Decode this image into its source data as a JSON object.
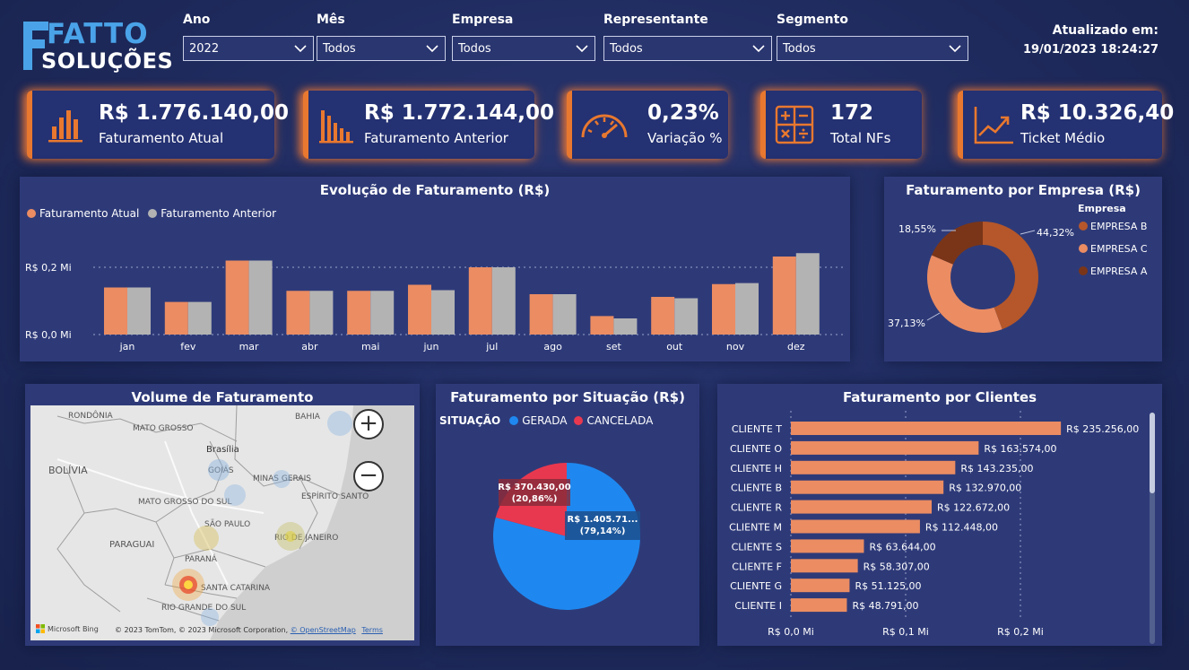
{
  "logo": {
    "brand": "FATTO",
    "sub": "SOLUÇÕES"
  },
  "filters": [
    {
      "label": "Ano",
      "value": "2022"
    },
    {
      "label": "Mês",
      "value": "Todos"
    },
    {
      "label": "Empresa",
      "value": "Todos"
    },
    {
      "label": "Representante",
      "value": "Todos"
    },
    {
      "label": "Segmento",
      "value": "Todos"
    }
  ],
  "updated": {
    "label": "Atualizado em:",
    "datetime": "19/01/2023 18:24:27"
  },
  "kpis": [
    {
      "value": "R$ 1.776.140,00",
      "label": "Faturamento Atual",
      "icon": "bar-chart-icon"
    },
    {
      "value": "R$ 1.772.144,00",
      "label": "Faturamento Anterior",
      "icon": "bar-chart-icon"
    },
    {
      "value": "0,23%",
      "label": "Variação %",
      "icon": "gauge-icon"
    },
    {
      "value": "172",
      "label": "Total NFs",
      "icon": "calculator-icon"
    },
    {
      "value": "R$ 10.326,40",
      "label": "Ticket Médio",
      "icon": "trend-up-icon"
    }
  ],
  "colors": {
    "accent": "#e8782f",
    "current": "#eb8c62",
    "previous": "#b3b3b3",
    "gerada": "#1e88f0",
    "cancelada": "#e8384f"
  },
  "evolucao": {
    "title": "Evolução de Faturamento (R$)",
    "legend": [
      "Faturamento Atual",
      "Faturamento Anterior"
    ],
    "y_ticks": [
      "R$ 0,2 Mi",
      "R$ 0,0 Mi"
    ]
  },
  "empresa": {
    "title": "Faturamento por Empresa (R$)",
    "legend_title": "Empresa",
    "labels": [
      "18,55%",
      "44,32%",
      "37,13%"
    ]
  },
  "map": {
    "title": "Volume de Faturamento",
    "places": [
      "RONDÔNIA",
      "BAHIA",
      "MATO GROSSO",
      "Brasília",
      "BOLÍVIA",
      "GOIÁS",
      "MINAS GERAIS",
      "ESPÍRITO SANTO",
      "MATO GROSSO DO SUL",
      "SÃO PAULO",
      "RIO DE JANEIRO",
      "PARAGUAI",
      "PARANÁ",
      "SANTA CATARINA",
      "RIO GRANDE DO SUL"
    ],
    "attribution": "© 2023 TomTom, © 2023 Microsoft Corporation,",
    "osm": "© OpenStreetMap",
    "terms": "Terms",
    "bing": "Microsoft Bing",
    "zoom_in": "+",
    "zoom_out": "−"
  },
  "situacao": {
    "title": "Faturamento por Situação (R$)",
    "legend_title": "SITUAÇÃO",
    "gerada_label": "R$ 1.405.71...",
    "gerada_pct": "(79,14%)",
    "cancelada_label": "R$ 370.430,00",
    "cancelada_pct": "(20,86%)"
  },
  "clientes": {
    "title": "Faturamento por Clientes",
    "x_ticks": [
      "R$ 0,0 Mi",
      "R$ 0,1 Mi",
      "R$ 0,2 Mi"
    ],
    "value_labels": [
      "R$ 235.256,00",
      "R$ 163.574,00",
      "R$ 143.235,00",
      "R$ 132.970,00",
      "R$ 122.672,00",
      "R$ 112.448,00",
      "R$ 63.644,00",
      "R$ 58.307,00",
      "R$ 51.125,00",
      "R$ 48.791,00"
    ]
  },
  "chart_data": [
    {
      "type": "bar",
      "title": "Evolução de Faturamento (R$)",
      "categories": [
        "jan",
        "fev",
        "mar",
        "abr",
        "mai",
        "jun",
        "jul",
        "ago",
        "set",
        "out",
        "nov",
        "dez"
      ],
      "series": [
        {
          "name": "Faturamento Atual",
          "values": [
            140000,
            97000,
            220000,
            130000,
            130000,
            148000,
            200000,
            120000,
            55000,
            112000,
            150000,
            232000
          ]
        },
        {
          "name": "Faturamento Anterior",
          "values": [
            140000,
            97000,
            220000,
            130000,
            130000,
            132000,
            200000,
            120000,
            48000,
            108000,
            153000,
            242000
          ]
        }
      ],
      "ylim": [
        0,
        250000
      ],
      "ylabel": "",
      "xlabel": ""
    },
    {
      "type": "pie",
      "title": "Faturamento por Empresa (R$)",
      "categories": [
        "EMPRESA B",
        "EMPRESA C",
        "EMPRESA A"
      ],
      "values": [
        44.32,
        37.13,
        18.55
      ]
    },
    {
      "type": "pie",
      "title": "Faturamento por Situação (R$)",
      "categories": [
        "GERADA",
        "CANCELADA"
      ],
      "values": [
        1405710,
        370430
      ]
    },
    {
      "type": "bar",
      "title": "Faturamento por Clientes",
      "categories": [
        "CLIENTE T",
        "CLIENTE O",
        "CLIENTE H",
        "CLIENTE B",
        "CLIENTE R",
        "CLIENTE M",
        "CLIENTE S",
        "CLIENTE F",
        "CLIENTE G",
        "CLIENTE I"
      ],
      "values": [
        235256,
        163574,
        143235,
        132970,
        122672,
        112448,
        63644,
        58307,
        51125,
        48791
      ],
      "xlim": [
        0,
        250000
      ]
    }
  ]
}
